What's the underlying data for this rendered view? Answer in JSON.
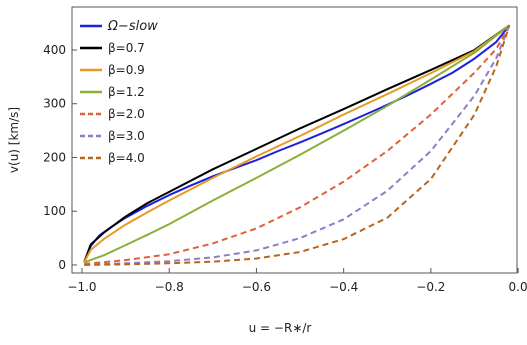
{
  "chart_data": {
    "type": "line",
    "title": "",
    "xlabel": "u = −R∗/r",
    "ylabel": "v(u)  [km/s]",
    "xlim": [
      -1.0,
      0.0
    ],
    "ylim": [
      -15,
      480
    ],
    "xticks": [
      -1.0,
      -0.8,
      -0.6,
      -0.4,
      -0.2,
      0.0
    ],
    "xtick_labels": [
      "−1.0",
      "−0.8",
      "−0.6",
      "−0.4",
      "−0.2",
      "0.0"
    ],
    "yticks": [
      0,
      100,
      200,
      300,
      400
    ],
    "ytick_labels": [
      "0",
      "100",
      "200",
      "300",
      "400"
    ],
    "grid": false,
    "legend_position": "top-left",
    "series": [
      {
        "name": "Ω−slow",
        "color": "#1f1fe0",
        "style": "solid",
        "legend_italic": true,
        "x": [
          -0.995,
          -0.98,
          -0.96,
          -0.93,
          -0.9,
          -0.85,
          -0.8,
          -0.75,
          -0.7,
          -0.65,
          -0.6,
          -0.55,
          -0.5,
          -0.45,
          -0.4,
          -0.35,
          -0.3,
          -0.25,
          -0.2,
          -0.15,
          -0.1,
          -0.05,
          -0.02
        ],
        "y": [
          5,
          35,
          55,
          72,
          88,
          110,
          130,
          148,
          165,
          180,
          195,
          212,
          228,
          245,
          262,
          280,
          298,
          317,
          337,
          358,
          384,
          415,
          446
        ]
      },
      {
        "name": "β=0.7",
        "color": "#000000",
        "style": "solid",
        "x": [
          -0.995,
          -0.98,
          -0.95,
          -0.9,
          -0.85,
          -0.8,
          -0.7,
          -0.6,
          -0.5,
          -0.4,
          -0.3,
          -0.2,
          -0.1,
          -0.02
        ],
        "y": [
          5,
          38,
          60,
          90,
          115,
          136,
          178,
          216,
          254,
          290,
          327,
          363,
          400,
          446
        ]
      },
      {
        "name": "β=0.9",
        "color": "#e69b20",
        "style": "solid",
        "x": [
          -0.995,
          -0.98,
          -0.95,
          -0.9,
          -0.85,
          -0.8,
          -0.7,
          -0.6,
          -0.5,
          -0.4,
          -0.3,
          -0.2,
          -0.1,
          -0.02
        ],
        "y": [
          5,
          28,
          48,
          75,
          98,
          120,
          162,
          202,
          240,
          280,
          318,
          357,
          398,
          446
        ]
      },
      {
        "name": "β=1.2",
        "color": "#8ab03a",
        "style": "solid",
        "x": [
          -0.995,
          -0.95,
          -0.9,
          -0.85,
          -0.8,
          -0.7,
          -0.6,
          -0.5,
          -0.4,
          -0.3,
          -0.2,
          -0.1,
          -0.02
        ],
        "y": [
          5,
          18,
          37,
          56,
          76,
          120,
          162,
          205,
          250,
          296,
          345,
          395,
          446
        ]
      },
      {
        "name": "β=2.0",
        "color": "#e0603a",
        "style": "dashed",
        "x": [
          -0.995,
          -0.9,
          -0.8,
          -0.7,
          -0.6,
          -0.5,
          -0.4,
          -0.3,
          -0.2,
          -0.1,
          -0.05,
          -0.02
        ],
        "y": [
          2,
          9,
          20,
          40,
          68,
          107,
          155,
          212,
          280,
          358,
          402,
          446
        ]
      },
      {
        "name": "β=3.0",
        "color": "#8c7fc8",
        "style": "dashed",
        "x": [
          -0.995,
          -0.9,
          -0.8,
          -0.7,
          -0.6,
          -0.5,
          -0.4,
          -0.3,
          -0.2,
          -0.1,
          -0.05,
          -0.02
        ],
        "y": [
          1,
          3,
          7,
          14,
          27,
          50,
          85,
          138,
          212,
          315,
          385,
          446
        ]
      },
      {
        "name": "β=4.0",
        "color": "#b8651f",
        "style": "dashed",
        "x": [
          -0.995,
          -0.9,
          -0.8,
          -0.7,
          -0.6,
          -0.5,
          -0.4,
          -0.3,
          -0.2,
          -0.1,
          -0.05,
          -0.02
        ],
        "y": [
          0,
          1,
          3,
          6,
          12,
          24,
          48,
          88,
          160,
          280,
          370,
          446
        ]
      }
    ]
  }
}
